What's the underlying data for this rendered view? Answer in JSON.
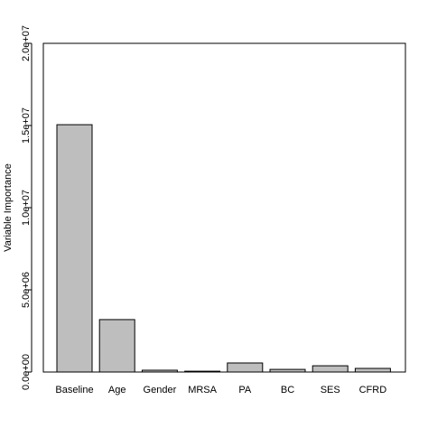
{
  "chart_data": {
    "type": "bar",
    "y_label": "Variable Importance",
    "categories": [
      "Baseline",
      "Age",
      "Gender",
      "MRSA",
      "PA",
      "BC",
      "SES",
      "CFRD"
    ],
    "values": [
      15050000,
      3190000,
      110000,
      50000,
      550000,
      160000,
      380000,
      220000
    ],
    "color": "#bebebe",
    "ylim": [
      0,
      20000000
    ],
    "yticks": [
      {
        "value": 0,
        "label": "0.0e+00"
      },
      {
        "value": 5000000,
        "label": "5.0e+06"
      },
      {
        "value": 10000000,
        "label": "1.0e+07"
      },
      {
        "value": 15000000,
        "label": "1.5e+07"
      },
      {
        "value": 20000000,
        "label": "2.0e+07"
      }
    ]
  }
}
